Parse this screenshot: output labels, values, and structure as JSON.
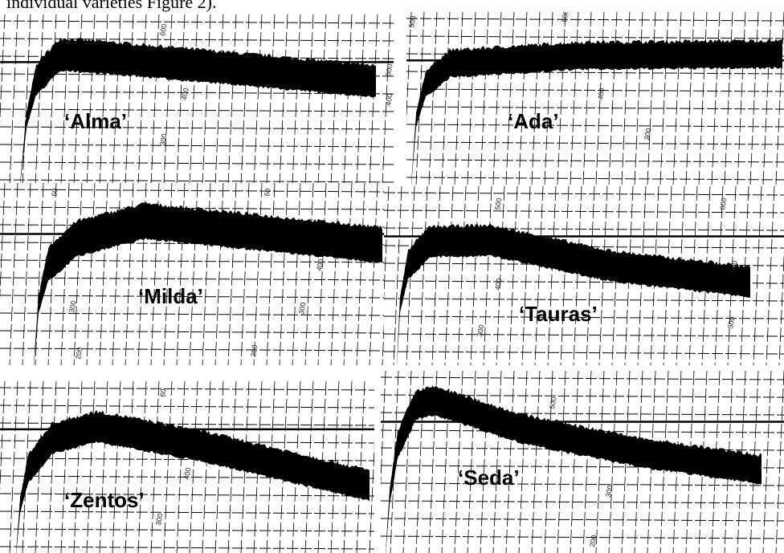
{
  "caption_fragment": "individual varieties Figure 2).",
  "panels": [
    {
      "label": "‘Alma’",
      "scale_labels": [
        "600",
        "500",
        "400",
        "400",
        "300"
      ]
    },
    {
      "label": "‘Ada’",
      "scale_labels": [
        "500",
        "600",
        "400",
        "300"
      ]
    },
    {
      "label": "‘Milda’",
      "scale_labels": [
        "60",
        "60",
        "400",
        "300",
        "300",
        "200",
        "200"
      ]
    },
    {
      "label": "‘Tauras’",
      "scale_labels": [
        "500",
        "600",
        "500",
        "400",
        "300",
        "300"
      ]
    },
    {
      "label": "‘Zentos’",
      "scale_labels": [
        "60",
        "400",
        "300"
      ]
    },
    {
      "label": "‘Seda’",
      "scale_labels": [
        "500",
        "300",
        "200"
      ]
    }
  ]
}
